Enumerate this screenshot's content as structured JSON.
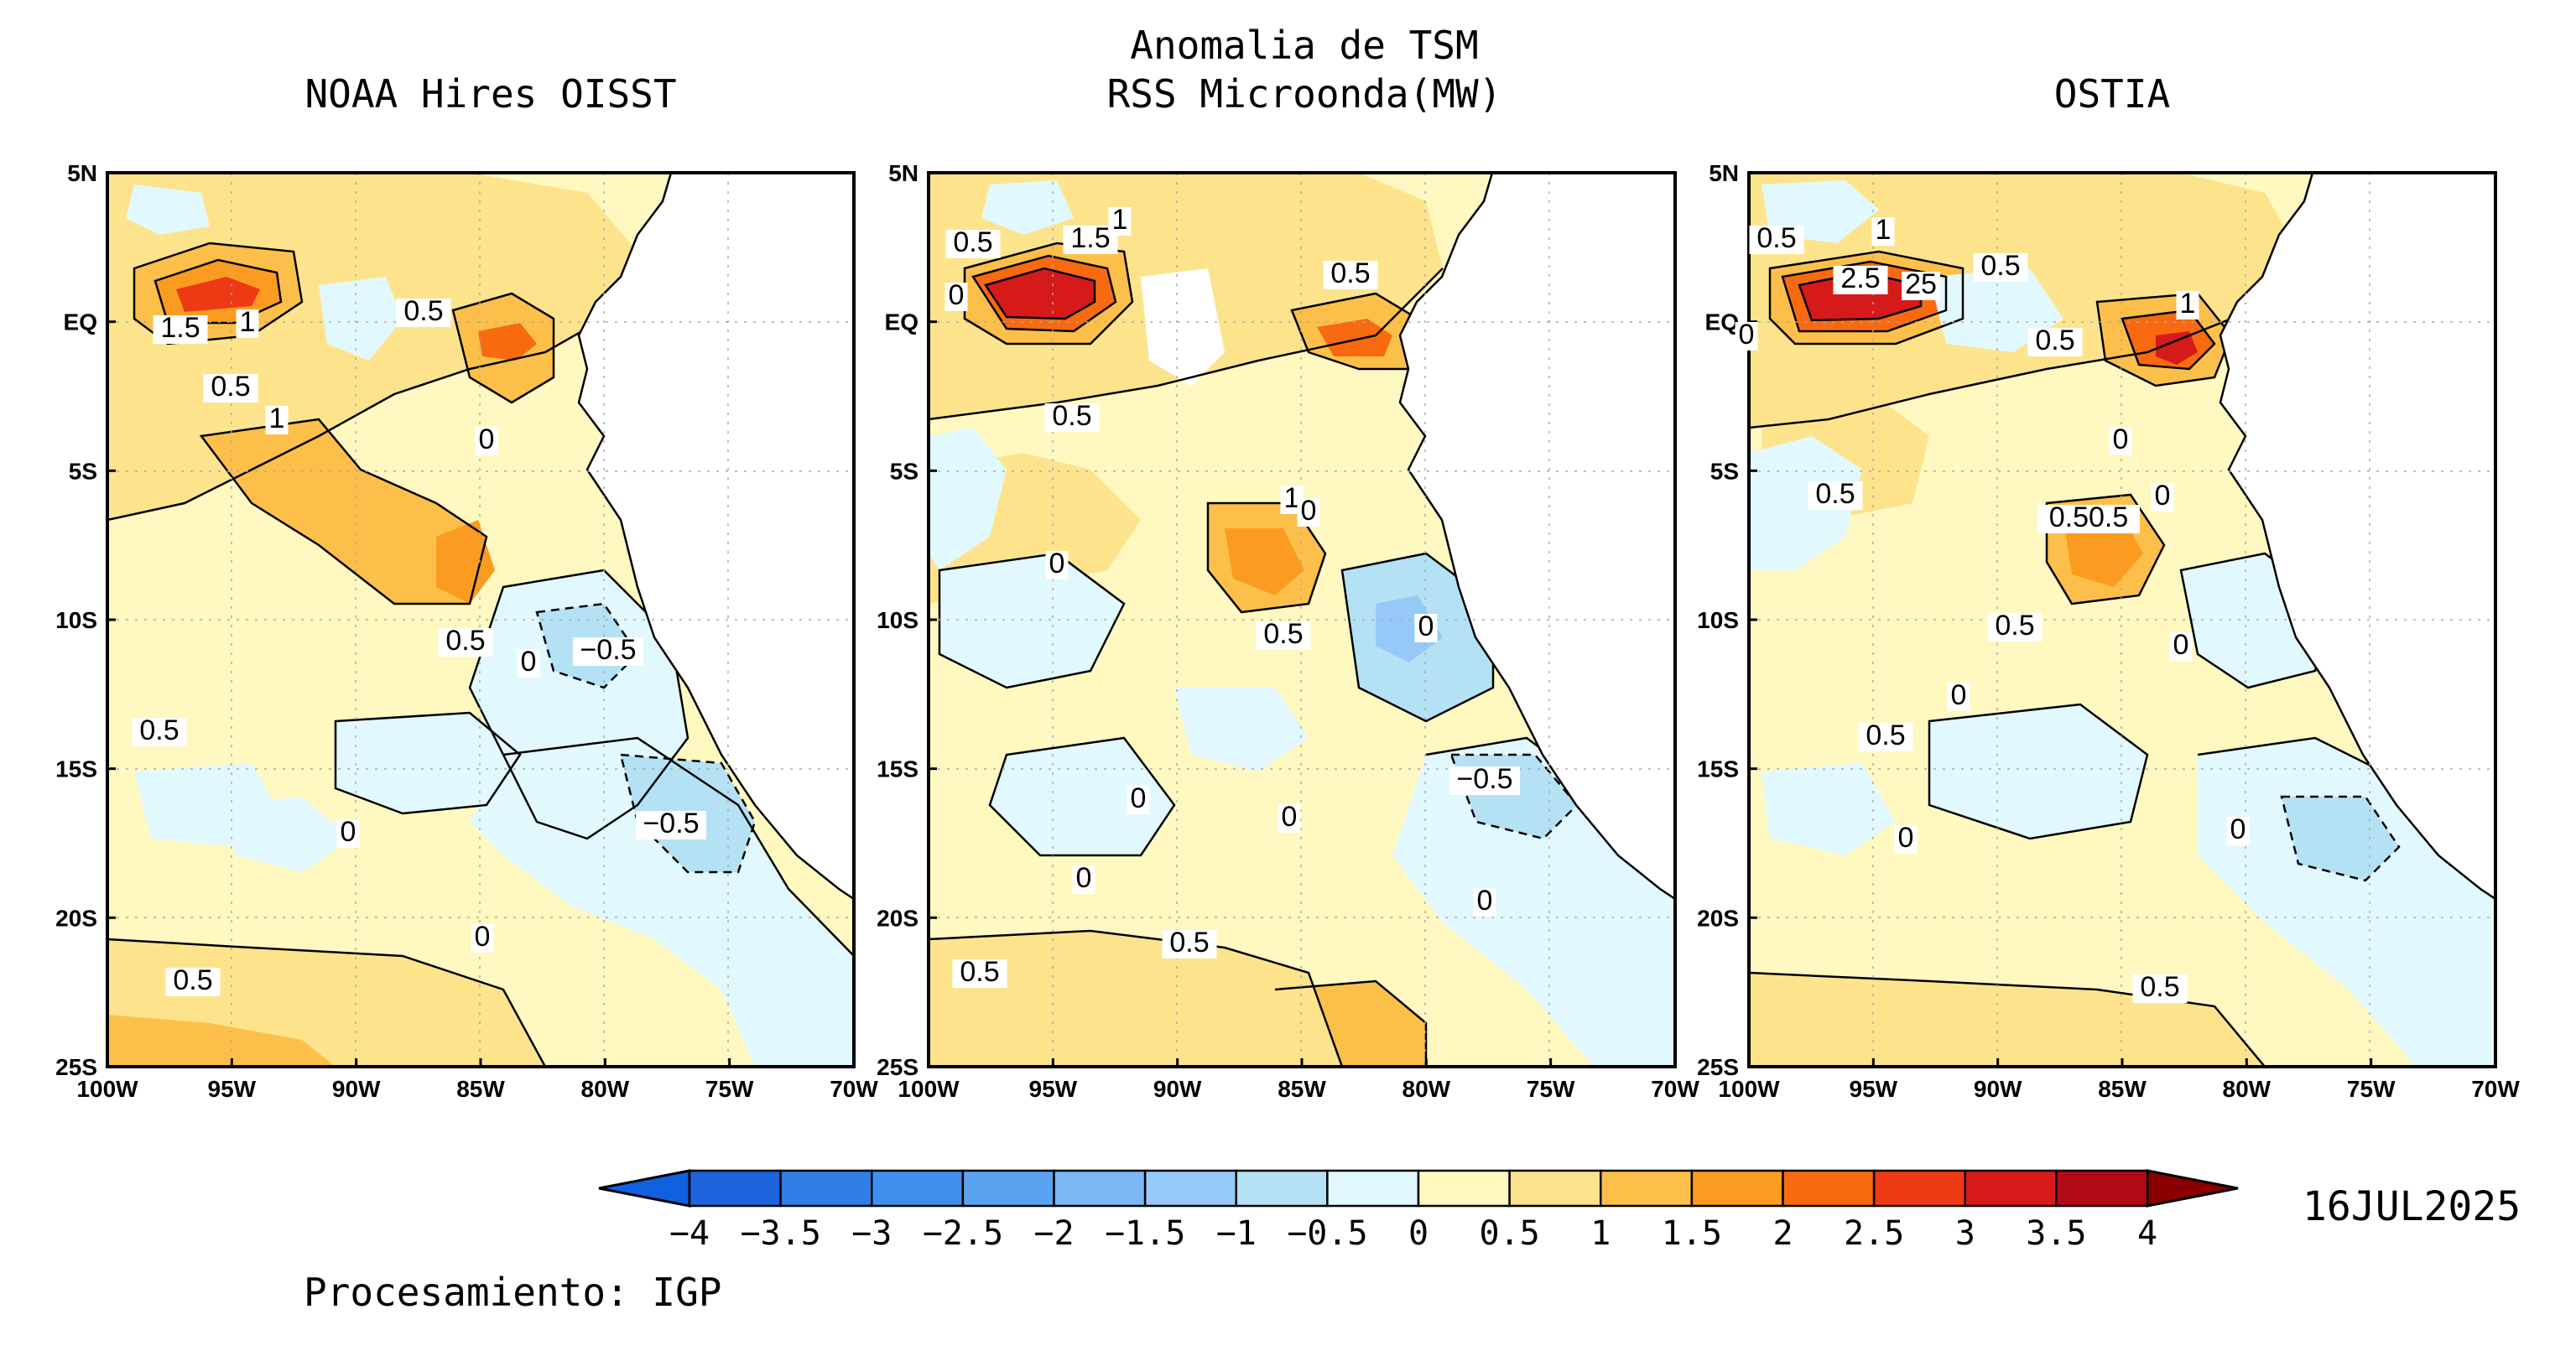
{
  "main_title": [
    "Anomalia de TSM",
    "RSS Microonda(MW)"
  ],
  "panels": [
    {
      "title": "NOAA Hires OISST",
      "contour_labels": [
        "1.5",
        "1",
        "0.5",
        "1",
        "0.5",
        "0",
        "0.5",
        "0",
        "−0.5",
        "0.5",
        "−0.5",
        "0",
        "0",
        "0.5"
      ]
    },
    {
      "title": "",
      "contour_labels": [
        "0.5",
        "1.5",
        "1",
        "0",
        "0.5",
        "0.5",
        "1",
        "0",
        "0",
        "0.5",
        "0",
        "0",
        "−0.5",
        "0",
        "0",
        "0",
        "0.5",
        "0.5"
      ]
    },
    {
      "title": "OSTIA",
      "contour_labels": [
        "0.5",
        "1",
        "2.5",
        "25",
        "0.5",
        "0",
        "1",
        "0.5",
        "0",
        "0.5",
        "0",
        "0.50.5",
        "0",
        "0.5",
        "0",
        "0",
        "0.5",
        "0",
        "0",
        "0.5"
      ]
    }
  ],
  "axes": {
    "lat_ticks": [
      "5N",
      "EQ",
      "5S",
      "10S",
      "15S",
      "20S",
      "25S"
    ],
    "lon_ticks": [
      "100W",
      "95W",
      "90W",
      "85W",
      "80W",
      "75W",
      "70W"
    ],
    "lat_range": [
      -25,
      5
    ],
    "lon_range": [
      -100,
      -70
    ]
  },
  "colorbar": {
    "ticks": [
      "−4",
      "−3.5",
      "−3",
      "−2.5",
      "−2",
      "−1.5",
      "−1",
      "−0.5",
      "0",
      "0.5",
      "1",
      "1.5",
      "2",
      "2.5",
      "3",
      "3.5",
      "4"
    ],
    "colors": [
      "#1e64dc",
      "#2f7ee6",
      "#3f90ee",
      "#5aa3f0",
      "#7ab8f5",
      "#96c9f8",
      "#b4e2f4",
      "#e2f8ff",
      "#fff8c0",
      "#fde48c",
      "#fcc04a",
      "#fb9b20",
      "#f86a10",
      "#ee3a14",
      "#d61a1a",
      "#b20a14"
    ],
    "under_color": "#1060e0",
    "over_color": "#8a0000"
  },
  "date": "16JUL2025",
  "credit": "Procesamiento: IGP"
}
